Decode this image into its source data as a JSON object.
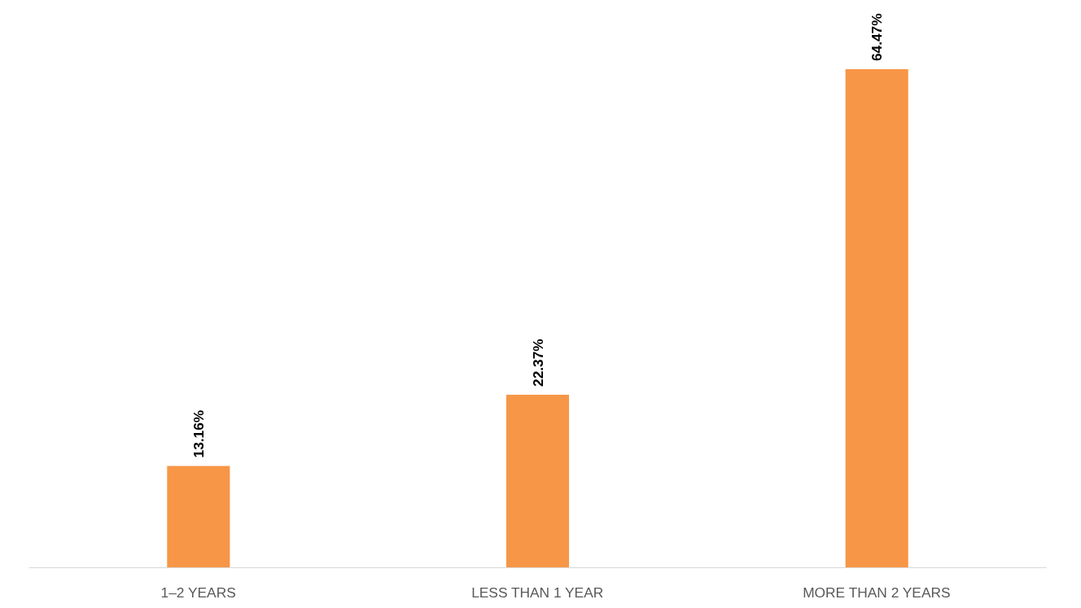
{
  "chart_data": {
    "type": "bar",
    "categories": [
      "1–2 YEARS",
      "LESS THAN 1 YEAR",
      "MORE THAN 2 YEARS"
    ],
    "values": [
      13.16,
      22.37,
      64.47
    ],
    "value_labels": [
      "13.16%",
      "22.37%",
      "64.47%"
    ],
    "color": "#f79646",
    "grid": false
  }
}
